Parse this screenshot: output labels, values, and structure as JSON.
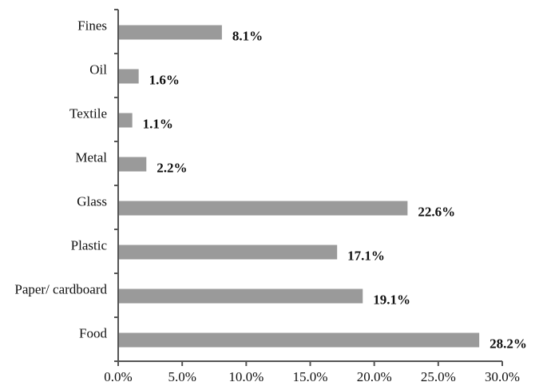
{
  "chart_data": {
    "type": "bar",
    "orientation": "horizontal",
    "categories": [
      "Fines",
      "Oil",
      "Textile",
      "Metal",
      "Glass",
      "Plastic",
      "Paper/ cardboard",
      "Food"
    ],
    "values": [
      8.1,
      1.6,
      1.1,
      2.2,
      22.6,
      17.1,
      19.1,
      28.2
    ],
    "data_labels": [
      "8.1%",
      "1.6%",
      "1.1%",
      "2.2%",
      "22.6%",
      "17.1%",
      "19.1%",
      "28.2%"
    ],
    "xlim": [
      0,
      30
    ],
    "x_ticks": [
      0,
      5,
      10,
      15,
      20,
      25,
      30
    ],
    "x_tick_labels": [
      "0.0%",
      "5.0%",
      "10.0%",
      "15.0%",
      "20.0%",
      "25.0%",
      "30.0%"
    ],
    "bar_color": "#9a9a9a",
    "grid": false,
    "legend": "none"
  }
}
